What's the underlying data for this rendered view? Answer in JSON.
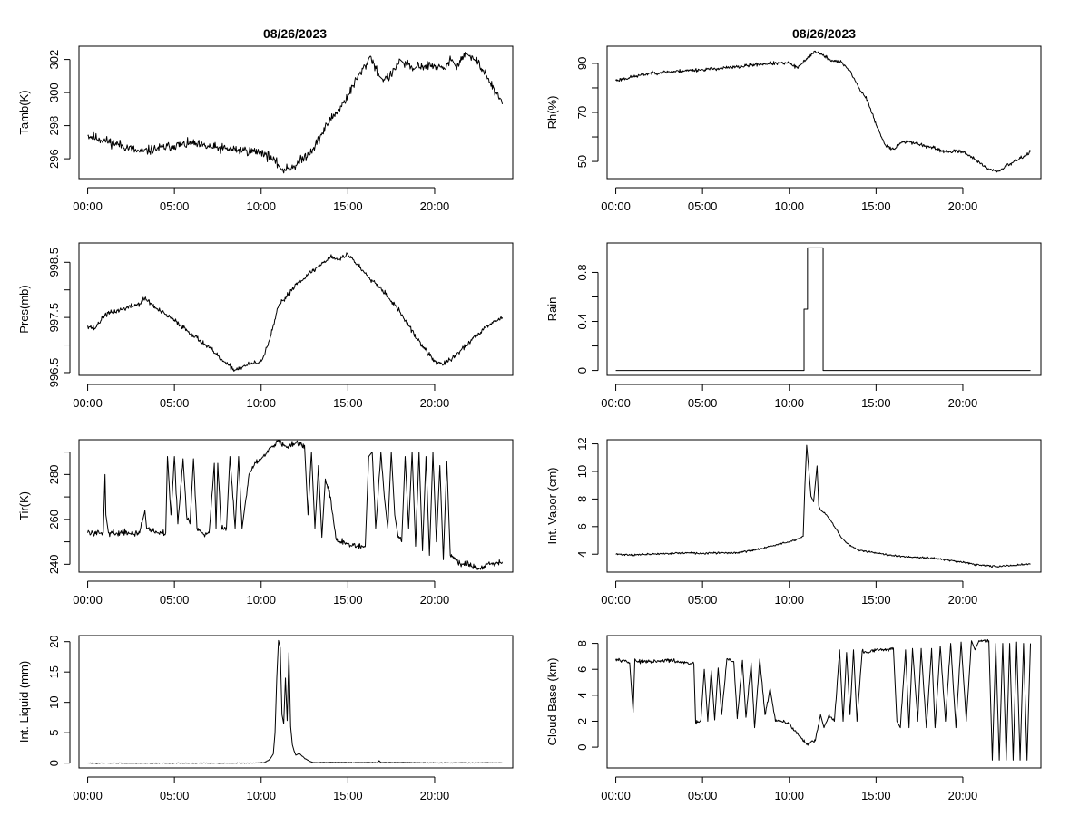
{
  "figure": {
    "left_title": "08/26/2023",
    "right_title": "08/26/2023"
  },
  "chart_data": [
    {
      "id": "tamb",
      "type": "line",
      "column": "left",
      "row": 0,
      "ylabel": "Tamb(K)",
      "xlabel": "",
      "xticks": [
        "00:00",
        "05:00",
        "10:00",
        "15:00",
        "20:00"
      ],
      "xlim": [
        -0.5,
        24.5
      ],
      "ylim": [
        294.8,
        302.8
      ],
      "yticks": [
        296,
        298,
        300,
        302
      ],
      "noise": 0.22,
      "seed": 11,
      "x": [
        0,
        1,
        2,
        3,
        4,
        5,
        6,
        7,
        8,
        9,
        10,
        10.5,
        11,
        11.2,
        12,
        13,
        14,
        14.5,
        15,
        15.5,
        16,
        16.3,
        16.8,
        17,
        17.5,
        18,
        18.2,
        18.8,
        19,
        20,
        20.5,
        21,
        21.2,
        21.8,
        22,
        22.5,
        23,
        23.5,
        23.9
      ],
      "y": [
        297.4,
        297.1,
        296.8,
        296.4,
        296.6,
        296.8,
        296.9,
        296.7,
        296.6,
        296.5,
        296.4,
        296.1,
        295.6,
        295.3,
        295.6,
        296.6,
        298.4,
        299.0,
        299.8,
        300.8,
        301.6,
        302.2,
        301.0,
        300.8,
        301.0,
        302.0,
        301.8,
        301.4,
        301.6,
        301.6,
        301.4,
        302.0,
        301.6,
        302.4,
        302.2,
        301.8,
        301.0,
        300.0,
        299.3
      ]
    },
    {
      "id": "rh",
      "type": "line",
      "column": "right",
      "row": 0,
      "ylabel": "Rh(%)",
      "xlabel": "",
      "xticks": [
        "00:00",
        "05:00",
        "10:00",
        "15:00",
        "20:00"
      ],
      "xlim": [
        -0.5,
        24.5
      ],
      "ylim": [
        43,
        97
      ],
      "yticks": [
        50,
        70,
        90
      ],
      "yminor": [
        60,
        80
      ],
      "noise": 0.55,
      "seed": 23,
      "x": [
        0,
        1,
        2,
        3,
        4,
        5,
        6,
        7,
        8,
        9,
        10,
        10.5,
        11,
        11.5,
        12,
        12.5,
        13,
        13.5,
        14,
        14.5,
        15,
        15.5,
        16,
        16.5,
        17,
        18,
        19,
        20,
        20.5,
        21,
        21.5,
        22,
        22.5,
        23,
        23.5,
        23.9
      ],
      "y": [
        83,
        84.5,
        86,
        86.5,
        87,
        87.5,
        88,
        88.5,
        89.5,
        90,
        90,
        88,
        92,
        95,
        93,
        91,
        90.5,
        87,
        80,
        75,
        65,
        57,
        55,
        58,
        58,
        56,
        54,
        54,
        52,
        49,
        47,
        46,
        48,
        50,
        52,
        54
      ]
    },
    {
      "id": "pres",
      "type": "line",
      "column": "left",
      "row": 1,
      "ylabel": "Pres(mb)",
      "xlabel": "",
      "xticks": [
        "00:00",
        "05:00",
        "10:00",
        "15:00",
        "20:00"
      ],
      "xlim": [
        -0.5,
        24.5
      ],
      "ylim": [
        996.45,
        998.85
      ],
      "yticks": [
        996.5,
        997.5,
        998.5
      ],
      "yminor": [
        997.0,
        998.0
      ],
      "noise": 0.035,
      "seed": 37,
      "x": [
        0,
        0.4,
        1,
        2,
        3,
        3.3,
        4,
        5,
        6,
        7,
        7.5,
        8,
        8.5,
        9,
        10,
        10.5,
        11,
        12,
        13,
        14,
        14.5,
        15,
        16,
        17,
        18,
        19,
        20,
        20.5,
        21,
        22,
        23,
        23.9
      ],
      "y": [
        997.35,
        997.3,
        997.55,
        997.65,
        997.75,
        997.85,
        997.65,
        997.45,
        997.2,
        996.95,
        996.8,
        996.65,
        996.55,
        996.62,
        996.7,
        997.1,
        997.7,
        998.1,
        998.35,
        998.6,
        998.55,
        998.65,
        998.3,
        998.0,
        997.6,
        997.1,
        996.7,
        996.65,
        996.75,
        997.05,
        997.35,
        997.5
      ]
    },
    {
      "id": "rain",
      "type": "line",
      "column": "right",
      "row": 1,
      "ylabel": "Rain",
      "xlabel": "",
      "xticks": [
        "00:00",
        "05:00",
        "10:00",
        "15:00",
        "20:00"
      ],
      "xlim": [
        -0.5,
        24.5
      ],
      "ylim": [
        -0.04,
        1.04
      ],
      "yticks": [
        0.0,
        0.4,
        0.8
      ],
      "yminor": [
        0.2,
        0.6
      ],
      "noise": 0,
      "seed": 1,
      "x": [
        0,
        10.85,
        10.85,
        11.05,
        11.05,
        11.95,
        11.95,
        23.9
      ],
      "y": [
        0,
        0,
        0.5,
        0.5,
        1,
        1,
        0,
        0
      ]
    },
    {
      "id": "tir",
      "type": "line",
      "column": "left",
      "row": 2,
      "ylabel": "Tir(K)",
      "xlabel": "",
      "xticks": [
        "00:00",
        "05:00",
        "10:00",
        "15:00",
        "20:00"
      ],
      "xlim": [
        -0.5,
        24.5
      ],
      "ylim": [
        236.5,
        295.5
      ],
      "yticks": [
        240,
        260,
        280
      ],
      "yminor": [
        250,
        270,
        290
      ],
      "noise": 1.0,
      "seed": 59,
      "x": [
        0,
        0.9,
        1.0,
        1.05,
        1.2,
        2,
        3,
        3.3,
        3.4,
        3.5,
        4,
        4.5,
        4.6,
        4.8,
        5.0,
        5.2,
        5.5,
        5.7,
        5.9,
        6.1,
        6.3,
        6.6,
        7.0,
        7.3,
        7.4,
        7.5,
        7.7,
        8.0,
        8.2,
        8.5,
        8.7,
        8.9,
        9.1,
        9.3,
        9.6,
        10,
        10.5,
        11,
        11.5,
        12,
        12.5,
        12.7,
        12.9,
        13.1,
        13.3,
        13.5,
        13.7,
        14.0,
        14.3,
        14.6,
        15,
        15.5,
        16.0,
        16.2,
        16.4,
        16.6,
        16.9,
        17.1,
        17.3,
        17.5,
        17.7,
        17.9,
        18.1,
        18.3,
        18.5,
        18.7,
        18.9,
        19.1,
        19.3,
        19.5,
        19.7,
        19.9,
        20.1,
        20.3,
        20.5,
        20.7,
        20.9,
        21.2,
        21.6,
        22,
        22.5,
        23,
        23.9
      ],
      "y": [
        254,
        254,
        280,
        262,
        254,
        254,
        254,
        264,
        256,
        256,
        254,
        254,
        288,
        262,
        288,
        258,
        287,
        262,
        258,
        287,
        256,
        254,
        254,
        285,
        256,
        285,
        256,
        256,
        288,
        256,
        288,
        256,
        268,
        280,
        284,
        287,
        292,
        295,
        292,
        294,
        293,
        262,
        290,
        256,
        284,
        252,
        278,
        270,
        252,
        250,
        249,
        248,
        248,
        288,
        290,
        256,
        290,
        270,
        256,
        290,
        262,
        252,
        250,
        288,
        256,
        290,
        248,
        290,
        246,
        288,
        244,
        290,
        250,
        284,
        242,
        286,
        244,
        242,
        240,
        240,
        238,
        240,
        241
      ]
    },
    {
      "id": "vapor",
      "type": "line",
      "column": "right",
      "row": 2,
      "ylabel": "Int. Vapor (cm)",
      "xlabel": "",
      "xticks": [
        "00:00",
        "05:00",
        "10:00",
        "15:00",
        "20:00"
      ],
      "xlim": [
        -0.5,
        24.5
      ],
      "ylim": [
        2.7,
        12.3
      ],
      "yticks": [
        4,
        6,
        8,
        10,
        12
      ],
      "noise": 0.05,
      "seed": 71,
      "x": [
        0,
        1,
        2,
        3,
        4,
        5,
        6,
        7,
        8,
        9,
        10,
        10.5,
        10.8,
        10.9,
        11.0,
        11.1,
        11.25,
        11.4,
        11.6,
        11.7,
        11.8,
        12.0,
        12.3,
        12.6,
        13,
        13.5,
        14,
        15,
        16,
        17,
        18,
        19,
        20,
        21,
        22,
        23,
        23.9
      ],
      "y": [
        4.0,
        3.95,
        4.0,
        4.05,
        4.1,
        4.05,
        4.1,
        4.1,
        4.3,
        4.6,
        4.9,
        5.1,
        5.3,
        9.0,
        11.9,
        10.5,
        8.2,
        7.8,
        10.4,
        7.5,
        7.2,
        7.0,
        6.6,
        6.0,
        5.2,
        4.6,
        4.3,
        4.1,
        3.9,
        3.8,
        3.75,
        3.6,
        3.4,
        3.2,
        3.1,
        3.2,
        3.3
      ]
    },
    {
      "id": "liquid",
      "type": "line",
      "column": "left",
      "row": 3,
      "ylabel": "Int. Liquid (mm)",
      "xlabel": "",
      "xticks": [
        "00:00",
        "05:00",
        "10:00",
        "15:00",
        "20:00"
      ],
      "xlim": [
        -0.5,
        24.5
      ],
      "ylim": [
        -0.8,
        21
      ],
      "yticks": [
        0,
        5,
        10,
        15,
        20
      ],
      "noise": 0.04,
      "seed": 83,
      "x": [
        0,
        5,
        9.5,
        10.2,
        10.5,
        10.7,
        10.8,
        10.9,
        11.0,
        11.1,
        11.2,
        11.3,
        11.4,
        11.5,
        11.6,
        11.7,
        11.8,
        11.9,
        12.0,
        12.2,
        12.5,
        12.8,
        13,
        16.7,
        16.8,
        16.9,
        17.5,
        18,
        20,
        22,
        23.9
      ],
      "y": [
        0,
        0,
        0,
        0.1,
        0.6,
        1.5,
        5,
        14,
        20.2,
        19,
        8,
        6.5,
        14,
        7,
        18.2,
        6,
        3,
        2,
        1.3,
        1.6,
        0.8,
        0.3,
        0.1,
        0.1,
        0.4,
        0.1,
        0.1,
        0.1,
        0.05,
        0.05,
        0.05
      ]
    },
    {
      "id": "cloudbase",
      "type": "line",
      "column": "right",
      "row": 3,
      "ylabel": "Cloud Base (km)",
      "xlabel": "",
      "xticks": [
        "00:00",
        "05:00",
        "10:00",
        "15:00",
        "20:00"
      ],
      "xlim": [
        -0.5,
        24.5
      ],
      "ylim": [
        -1.6,
        8.6
      ],
      "yticks": [
        0,
        2,
        4,
        6,
        8
      ],
      "noise": 0.1,
      "seed": 97,
      "x": [
        0,
        0.5,
        0.8,
        1.0,
        1.1,
        1.2,
        2,
        2.5,
        3,
        3.5,
        4,
        4.5,
        4.6,
        4.9,
        5.1,
        5.3,
        5.5,
        5.7,
        5.9,
        6.1,
        6.4,
        6.8,
        7.0,
        7.3,
        7.5,
        7.8,
        8.0,
        8.3,
        8.6,
        8.9,
        9.2,
        9.5,
        10,
        10.5,
        11,
        11.5,
        11.8,
        12,
        12.3,
        12.6,
        12.9,
        13.1,
        13.3,
        13.5,
        13.7,
        13.9,
        14.2,
        14.5,
        15,
        15.5,
        16,
        16.2,
        16.4,
        16.7,
        16.9,
        17.1,
        17.4,
        17.6,
        17.9,
        18.2,
        18.4,
        18.7,
        19.0,
        19.3,
        19.6,
        19.9,
        20.2,
        20.5,
        20.7,
        20.9,
        21.2,
        21.5,
        21.7,
        21.9,
        22.1,
        22.3,
        22.5,
        22.7,
        22.9,
        23.1,
        23.3,
        23.5,
        23.7,
        23.9
      ],
      "y": [
        6.8,
        6.7,
        6.5,
        2.7,
        6.8,
        6.6,
        6.6,
        6.6,
        6.7,
        6.6,
        6.5,
        6.4,
        1.9,
        2.0,
        6.0,
        2.0,
        5.9,
        2.1,
        6.1,
        2.5,
        6.8,
        6.6,
        2.2,
        6.7,
        2.3,
        6.5,
        1.5,
        6.8,
        2.5,
        4.5,
        2.0,
        2.0,
        1.8,
        1.0,
        0.2,
        0.5,
        2.5,
        1.5,
        2.5,
        2.0,
        7.5,
        2.0,
        7.3,
        2.5,
        7.5,
        2.0,
        7.4,
        7.3,
        7.5,
        7.5,
        7.6,
        2.0,
        1.5,
        7.5,
        1.5,
        7.6,
        2.0,
        7.6,
        1.5,
        7.6,
        1.5,
        7.8,
        2.0,
        8.0,
        1.5,
        8.1,
        2.0,
        8.2,
        7.5,
        8.1,
        8.2,
        8.2,
        -1.0,
        8.0,
        -1.0,
        8.0,
        -1.0,
        8.0,
        -1.0,
        8.1,
        -1.0,
        8.0,
        -1.0,
        8.0
      ]
    }
  ]
}
